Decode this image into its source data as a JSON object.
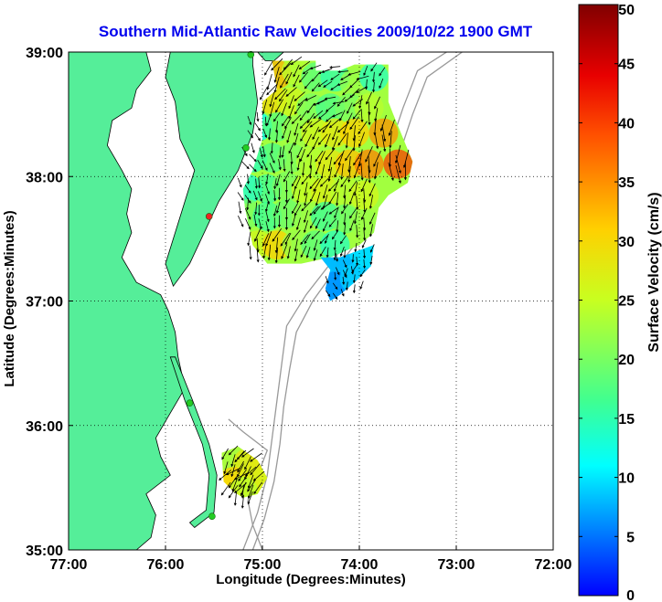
{
  "chart_data": {
    "type": "heatmap",
    "title": "Southern Mid-Atlantic Raw Velocities 2009/10/22 1900 GMT",
    "xlabel": "Longitude (Degrees:Minutes)",
    "ylabel": "Latitude (Degrees:Minutes)",
    "xlim": [
      -77,
      -72
    ],
    "ylim": [
      35,
      39
    ],
    "x_ticks": [
      {
        "value": -77,
        "label": "77:00"
      },
      {
        "value": -76,
        "label": "76:00"
      },
      {
        "value": -75,
        "label": "75:00"
      },
      {
        "value": -74,
        "label": "74:00"
      },
      {
        "value": -73,
        "label": "73:00"
      },
      {
        "value": -72,
        "label": "72:00"
      }
    ],
    "y_ticks": [
      {
        "value": 35,
        "label": "35:00"
      },
      {
        "value": 36,
        "label": "36:00"
      },
      {
        "value": 37,
        "label": "37:00"
      },
      {
        "value": 38,
        "label": "38:00"
      },
      {
        "value": 39,
        "label": "39:00"
      }
    ],
    "grid": true,
    "colorbar": {
      "label": "Surface Velocity (cm/s)",
      "range": [
        0,
        50
      ],
      "ticks": [
        0,
        5,
        10,
        15,
        20,
        25,
        30,
        35,
        40,
        45,
        50
      ],
      "colormap": "jet"
    },
    "land_color": "#55ee99",
    "coastline_color": "#000000",
    "isobath_color": "#999999",
    "station_color": "#22cc22",
    "station_inactive_color": "#ee2222",
    "stations": [
      {
        "lon": -75.12,
        "lat": 38.98,
        "status": "active"
      },
      {
        "lon": -75.17,
        "lat": 38.23,
        "status": "active"
      },
      {
        "lon": -75.55,
        "lat": 37.68,
        "status": "inactive"
      },
      {
        "lon": -75.75,
        "lat": 36.18,
        "status": "active"
      },
      {
        "lon": -75.52,
        "lat": 35.27,
        "status": "active"
      }
    ],
    "velocity_fields": [
      {
        "name": "north",
        "poly": [
          [
            -74.9,
            38.93
          ],
          [
            -74.45,
            38.93
          ],
          [
            -74.45,
            38.85
          ],
          [
            -74.2,
            38.85
          ],
          [
            -74.05,
            38.9
          ],
          [
            -73.7,
            38.9
          ],
          [
            -73.7,
            38.6
          ],
          [
            -73.65,
            38.5
          ],
          [
            -73.45,
            38.12
          ],
          [
            -73.5,
            37.95
          ],
          [
            -73.7,
            37.85
          ],
          [
            -73.8,
            37.75
          ],
          [
            -73.85,
            37.55
          ],
          [
            -74.0,
            37.45
          ],
          [
            -74.3,
            37.35
          ],
          [
            -74.6,
            37.3
          ],
          [
            -74.95,
            37.3
          ],
          [
            -75.1,
            37.45
          ],
          [
            -75.18,
            37.75
          ],
          [
            -75.2,
            37.9
          ],
          [
            -75.1,
            38.05
          ],
          [
            -75.0,
            38.3
          ],
          [
            -75.0,
            38.6
          ],
          [
            -74.85,
            38.7
          ]
        ],
        "samples": [
          {
            "lon": -74.85,
            "lat": 38.82,
            "speed": 33,
            "dir": 210
          },
          {
            "lon": -74.65,
            "lat": 38.85,
            "speed": 24,
            "dir": 220
          },
          {
            "lon": -74.45,
            "lat": 38.8,
            "speed": 18,
            "dir": 235
          },
          {
            "lon": -74.25,
            "lat": 38.8,
            "speed": 15,
            "dir": 250
          },
          {
            "lon": -74.05,
            "lat": 38.75,
            "speed": 22,
            "dir": 240
          },
          {
            "lon": -73.85,
            "lat": 38.8,
            "speed": 14,
            "dir": 200
          },
          {
            "lon": -74.9,
            "lat": 38.62,
            "speed": 30,
            "dir": 210
          },
          {
            "lon": -74.7,
            "lat": 38.6,
            "speed": 26,
            "dir": 215
          },
          {
            "lon": -74.5,
            "lat": 38.55,
            "speed": 20,
            "dir": 230
          },
          {
            "lon": -74.3,
            "lat": 38.55,
            "speed": 17,
            "dir": 245
          },
          {
            "lon": -74.1,
            "lat": 38.55,
            "speed": 20,
            "dir": 220
          },
          {
            "lon": -73.9,
            "lat": 38.55,
            "speed": 24,
            "dir": 190
          },
          {
            "lon": -75.05,
            "lat": 38.4,
            "speed": 11,
            "dir": 160
          },
          {
            "lon": -74.85,
            "lat": 38.4,
            "speed": 18,
            "dir": 200
          },
          {
            "lon": -74.65,
            "lat": 38.38,
            "speed": 22,
            "dir": 210
          },
          {
            "lon": -74.45,
            "lat": 38.35,
            "speed": 26,
            "dir": 220
          },
          {
            "lon": -74.25,
            "lat": 38.35,
            "speed": 28,
            "dir": 215
          },
          {
            "lon": -74.05,
            "lat": 38.35,
            "speed": 31,
            "dir": 200
          },
          {
            "lon": -73.75,
            "lat": 38.35,
            "speed": 35,
            "dir": 185
          },
          {
            "lon": -75.1,
            "lat": 38.15,
            "speed": 14,
            "dir": 150
          },
          {
            "lon": -74.9,
            "lat": 38.15,
            "speed": 17,
            "dir": 170
          },
          {
            "lon": -74.7,
            "lat": 38.15,
            "speed": 20,
            "dir": 190
          },
          {
            "lon": -74.5,
            "lat": 38.12,
            "speed": 24,
            "dir": 200
          },
          {
            "lon": -74.3,
            "lat": 38.1,
            "speed": 28,
            "dir": 205
          },
          {
            "lon": -74.1,
            "lat": 38.1,
            "speed": 32,
            "dir": 200
          },
          {
            "lon": -73.9,
            "lat": 38.1,
            "speed": 36,
            "dir": 190
          },
          {
            "lon": -73.6,
            "lat": 38.1,
            "speed": 40,
            "dir": 180
          },
          {
            "lon": -75.15,
            "lat": 37.9,
            "speed": 13,
            "dir": 160
          },
          {
            "lon": -74.95,
            "lat": 37.9,
            "speed": 16,
            "dir": 175
          },
          {
            "lon": -74.75,
            "lat": 37.92,
            "speed": 20,
            "dir": 195
          },
          {
            "lon": -74.55,
            "lat": 37.9,
            "speed": 25,
            "dir": 205
          },
          {
            "lon": -74.35,
            "lat": 37.88,
            "speed": 27,
            "dir": 210
          },
          {
            "lon": -74.15,
            "lat": 37.88,
            "speed": 24,
            "dir": 200
          },
          {
            "lon": -73.95,
            "lat": 37.85,
            "speed": 26,
            "dir": 190
          },
          {
            "lon": -75.15,
            "lat": 37.7,
            "speed": 20,
            "dir": 170
          },
          {
            "lon": -74.95,
            "lat": 37.68,
            "speed": 16,
            "dir": 180
          },
          {
            "lon": -74.75,
            "lat": 37.7,
            "speed": 19,
            "dir": 195
          },
          {
            "lon": -74.55,
            "lat": 37.68,
            "speed": 22,
            "dir": 210
          },
          {
            "lon": -74.35,
            "lat": 37.68,
            "speed": 16,
            "dir": 220
          },
          {
            "lon": -74.15,
            "lat": 37.66,
            "speed": 19,
            "dir": 200
          },
          {
            "lon": -73.95,
            "lat": 37.62,
            "speed": 22,
            "dir": 190
          },
          {
            "lon": -75.05,
            "lat": 37.45,
            "speed": 26,
            "dir": 190
          },
          {
            "lon": -74.85,
            "lat": 37.45,
            "speed": 31,
            "dir": 200
          },
          {
            "lon": -74.65,
            "lat": 37.45,
            "speed": 22,
            "dir": 205
          },
          {
            "lon": -74.45,
            "lat": 37.45,
            "speed": 18,
            "dir": 210
          },
          {
            "lon": -74.25,
            "lat": 37.45,
            "speed": 14,
            "dir": 200
          }
        ]
      },
      {
        "name": "tongue",
        "poly": [
          [
            -74.4,
            37.35
          ],
          [
            -74.2,
            37.35
          ],
          [
            -73.85,
            37.45
          ],
          [
            -73.88,
            37.28
          ],
          [
            -74.05,
            37.15
          ],
          [
            -74.2,
            37.05
          ],
          [
            -74.3,
            37.0
          ],
          [
            -74.35,
            37.1
          ],
          [
            -74.3,
            37.25
          ]
        ],
        "samples": [
          {
            "lon": -74.15,
            "lat": 37.3,
            "speed": 8,
            "dir": 170
          },
          {
            "lon": -73.95,
            "lat": 37.38,
            "speed": 10,
            "dir": 190
          },
          {
            "lon": -74.25,
            "lat": 37.12,
            "speed": 6,
            "dir": 160
          },
          {
            "lon": -74.05,
            "lat": 37.18,
            "speed": 9,
            "dir": 200
          }
        ]
      },
      {
        "name": "south",
        "poly": [
          [
            -75.42,
            35.78
          ],
          [
            -75.25,
            35.83
          ],
          [
            -75.05,
            35.72
          ],
          [
            -74.95,
            35.58
          ],
          [
            -75.05,
            35.45
          ],
          [
            -75.2,
            35.42
          ],
          [
            -75.3,
            35.47
          ],
          [
            -75.4,
            35.55
          ]
        ],
        "samples": [
          {
            "lon": -75.3,
            "lat": 35.72,
            "speed": 22,
            "dir": 210
          },
          {
            "lon": -75.15,
            "lat": 35.7,
            "speed": 28,
            "dir": 220
          },
          {
            "lon": -75.3,
            "lat": 35.55,
            "speed": 31,
            "dir": 230
          },
          {
            "lon": -75.12,
            "lat": 35.55,
            "speed": 27,
            "dir": 215
          },
          {
            "lon": -75.2,
            "lat": 35.47,
            "speed": 24,
            "dir": 200
          }
        ]
      }
    ]
  }
}
